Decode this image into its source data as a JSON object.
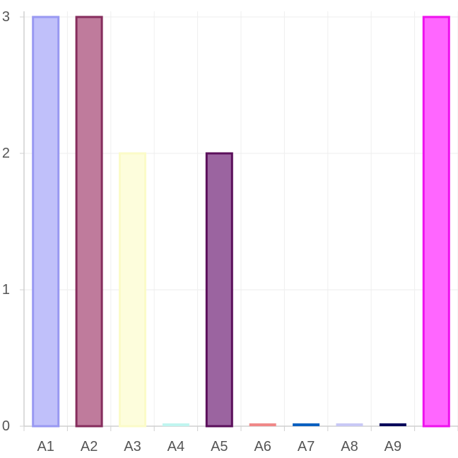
{
  "chart_data": {
    "type": "bar",
    "title": "",
    "xlabel": "",
    "ylabel": "",
    "ylim": [
      0,
      3
    ],
    "yticks": [
      0,
      1,
      2,
      3
    ],
    "grid": true,
    "legend": "none",
    "categories": [
      "A1",
      "A2",
      "A3",
      "A4",
      "A5",
      "A6",
      "A7",
      "A8",
      "A9",
      ""
    ],
    "values": [
      3,
      3,
      2,
      0,
      2,
      0,
      0,
      0,
      0,
      3
    ],
    "fill_colors": [
      "#c0c0fa",
      "#bf7b9c",
      "#fdfddc",
      "#d6f8f5",
      "#9b64a0",
      "#f08888",
      "#0b60c0",
      "#c8c8f5",
      "#00005a",
      "#ff66ff"
    ],
    "stroke_colors": [
      "#9999f2",
      "#862d5d",
      "#fbfbc8",
      "#c0f5f0",
      "#5b0f5b",
      "#f08888",
      "#0b60c0",
      "#c8c8f5",
      "#00005a",
      "#ee11ee"
    ]
  }
}
